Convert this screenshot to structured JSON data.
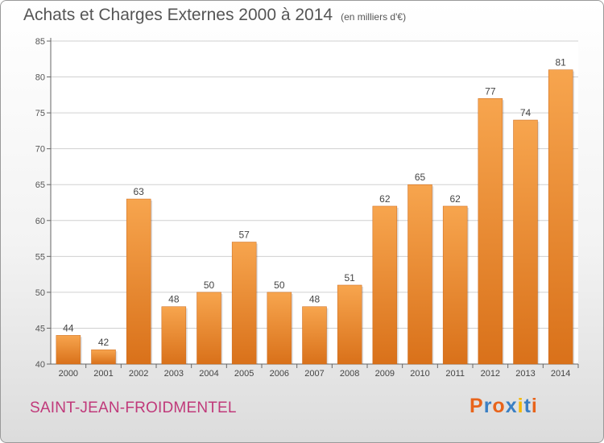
{
  "title": "Achats et Charges Externes 2000 à 2014",
  "subtitle": "(en milliers d'€)",
  "commune": "SAINT-JEAN-FROIDMENTEL",
  "logo": {
    "text": "Proxiti",
    "colors": [
      "#e8641b",
      "#3a7fc4",
      "#e8641b",
      "#3a7fc4",
      "#f5b800",
      "#3a7fc4",
      "#e8641b"
    ]
  },
  "colors": {
    "bar_light": "#f7a54e",
    "bar_dark": "#d9711a",
    "grid": "#d0d0d0",
    "axis": "#666666",
    "commune": "#c0397a"
  },
  "chart_data": {
    "type": "bar",
    "categories": [
      "2000",
      "2001",
      "2002",
      "2003",
      "2004",
      "2005",
      "2006",
      "2007",
      "2008",
      "2009",
      "2010",
      "2011",
      "2012",
      "2013",
      "2014"
    ],
    "values": [
      44,
      42,
      63,
      48,
      50,
      57,
      50,
      48,
      51,
      62,
      65,
      62,
      77,
      74,
      81
    ],
    "ylim": [
      40,
      85
    ],
    "yticks": [
      40,
      45,
      50,
      55,
      60,
      65,
      70,
      75,
      80,
      85
    ],
    "grid": true,
    "xlabel": "",
    "ylabel": ""
  }
}
